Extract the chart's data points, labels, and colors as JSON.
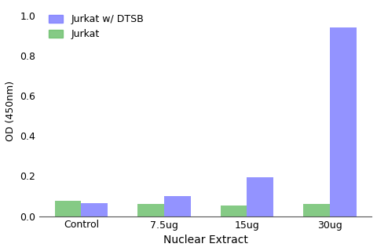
{
  "categories": [
    "Control",
    "7.5ug",
    "15ug",
    "30ug"
  ],
  "series": [
    {
      "label": "Jurkat",
      "color": "#6abf6a",
      "values": [
        0.078,
        0.06,
        0.055,
        0.063
      ]
    },
    {
      "label": "Jurkat w/ DTSB",
      "color": "#7b7bff",
      "values": [
        0.065,
        0.1,
        0.195,
        0.94
      ]
    }
  ],
  "xlabel": "Nuclear Extract",
  "ylabel": "OD (450nm)",
  "ylim": [
    0,
    1.05
  ],
  "yticks": [
    0.0,
    0.2,
    0.4,
    0.6,
    0.8,
    1.0
  ],
  "bar_width": 0.32,
  "legend_series_order": [
    1,
    0
  ],
  "legend_labels": [
    "Jurkat w/ DTSB",
    "Jurkat"
  ],
  "legend_colors": [
    "#7b7bff",
    "#6abf6a"
  ],
  "legend_loc": "upper left",
  "background_color": "#ffffff",
  "figsize": [
    4.8,
    3.2
  ],
  "dpi": 100
}
